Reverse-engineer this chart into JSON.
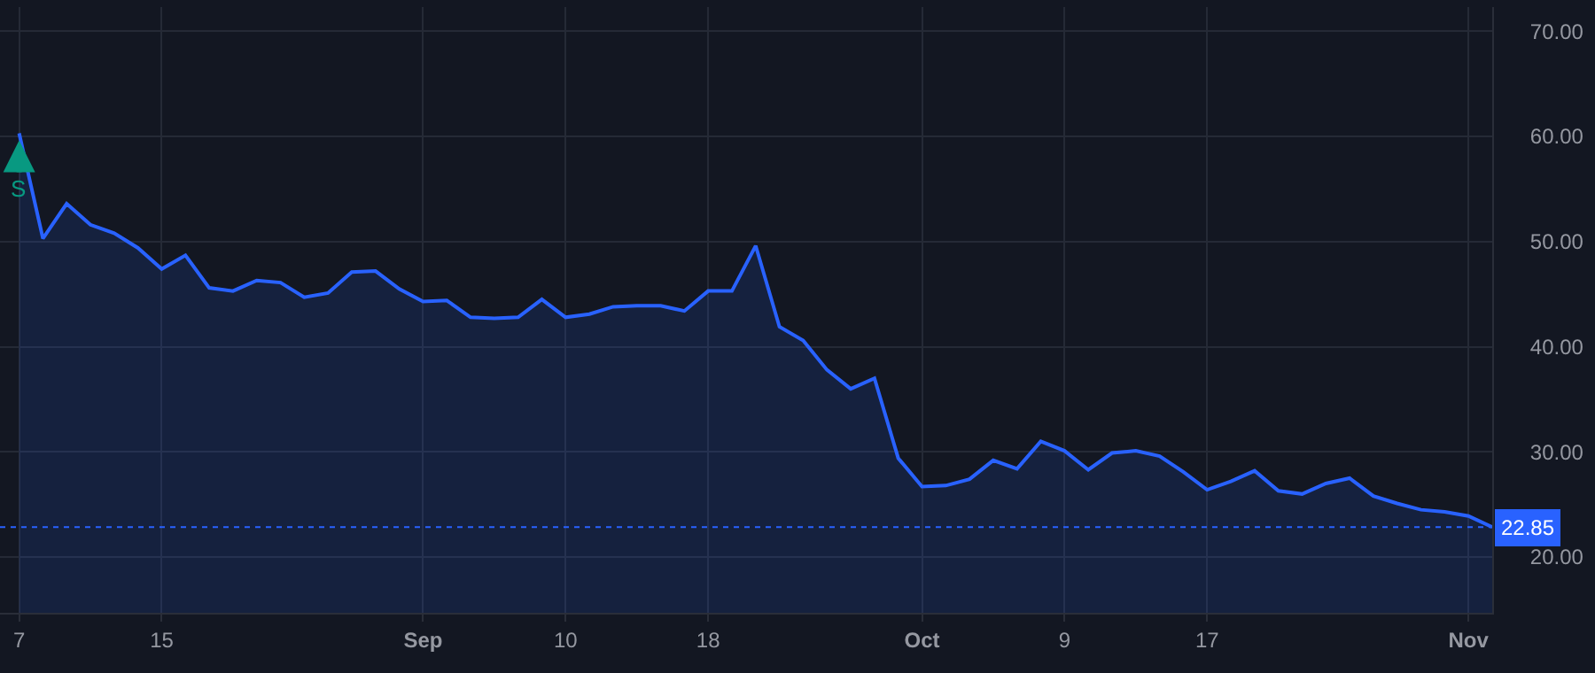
{
  "chart_data": {
    "type": "area",
    "categories": [
      "7",
      null,
      null,
      null,
      null,
      null,
      "15",
      null,
      null,
      null,
      null,
      null,
      null,
      null,
      null,
      null,
      null,
      "Sep",
      null,
      null,
      null,
      null,
      null,
      "10",
      null,
      null,
      null,
      null,
      null,
      "18",
      null,
      null,
      null,
      null,
      null,
      null,
      null,
      null,
      "Oct",
      null,
      null,
      null,
      null,
      null,
      "9",
      null,
      null,
      null,
      null,
      null,
      "17",
      null,
      null,
      null,
      null,
      null,
      null,
      null,
      null,
      null,
      null,
      "Nov",
      null
    ],
    "series": [
      {
        "color": "#2962ff",
        "values": [
          60.3,
          50.3,
          53.6,
          51.6,
          50.8,
          49.4,
          47.4,
          48.7,
          45.6,
          45.3,
          46.3,
          46.1,
          44.7,
          45.1,
          47.1,
          47.2,
          45.5,
          44.3,
          44.4,
          42.8,
          42.7,
          42.8,
          44.5,
          42.8,
          43.1,
          43.8,
          43.9,
          43.9,
          43.4,
          45.3,
          45.3,
          49.6,
          41.9,
          40.6,
          37.8,
          36.0,
          37.0,
          29.4,
          26.7,
          26.8,
          27.4,
          29.2,
          28.4,
          31.0,
          30.1,
          28.3,
          29.9,
          30.1,
          29.6,
          28.1,
          26.4,
          27.2,
          28.2,
          26.3,
          26.0,
          27.0,
          27.5,
          25.8,
          25.1,
          24.5,
          24.3,
          23.9,
          22.85
        ]
      }
    ],
    "ylim": [
      14.7,
      72.3
    ],
    "yticks": [
      {
        "value": 20,
        "label": "20.00"
      },
      {
        "value": 30,
        "label": "30.00"
      },
      {
        "value": 40,
        "label": "40.00"
      },
      {
        "value": 50,
        "label": "50.00"
      },
      {
        "value": 60,
        "label": "60.00"
      },
      {
        "value": 70,
        "label": "70.00"
      }
    ],
    "ref_lines": [
      {
        "axis": "y",
        "value": 22.85,
        "label": "22.85",
        "color": "#2962ff",
        "line_style": "dotted"
      }
    ],
    "annotations": [
      {
        "text": "S",
        "x": "7",
        "y": 60.3
      }
    ],
    "grid": true
  }
}
